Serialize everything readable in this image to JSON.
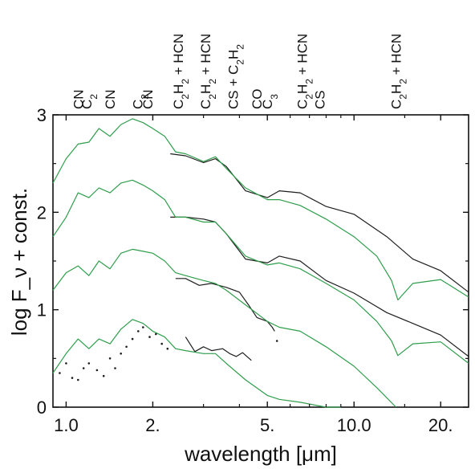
{
  "chart_data": {
    "type": "line",
    "xlabel": "wavelength [μm]",
    "ylabel": "log F_ν + const.",
    "xscale": "log",
    "xlim": [
      0.9,
      25
    ],
    "ylim": [
      0,
      3
    ],
    "x_ticks": [
      {
        "value": 1.0,
        "label": "1.0"
      },
      {
        "value": 2.0,
        "label": "2."
      },
      {
        "value": 5.0,
        "label": "5."
      },
      {
        "value": 10.0,
        "label": "10.0"
      },
      {
        "value": 20.0,
        "label": "20."
      }
    ],
    "y_ticks": [
      {
        "value": 0,
        "label": "0"
      },
      {
        "value": 1,
        "label": "1"
      },
      {
        "value": 2,
        "label": "2"
      },
      {
        "value": 3,
        "label": "3"
      }
    ],
    "molecule_labels": [
      {
        "x": 1.1,
        "text": "CN"
      },
      {
        "x": 1.18,
        "text": "C2"
      },
      {
        "x": 1.42,
        "text": "CN"
      },
      {
        "x": 1.77,
        "text": "C2"
      },
      {
        "x": 1.92,
        "text": "CN"
      },
      {
        "x": 2.45,
        "text": "C2H2 + HCN"
      },
      {
        "x": 3.05,
        "text": "C2H2 + HCN"
      },
      {
        "x": 3.8,
        "text": "CS + C2H2"
      },
      {
        "x": 4.6,
        "text": "CO"
      },
      {
        "x": 5.0,
        "text": "C3"
      },
      {
        "x": 6.6,
        "text": "C2H2 + HCN"
      },
      {
        "x": 7.6,
        "text": "CS"
      },
      {
        "x": 14.0,
        "text": "C2H2 + HCN"
      }
    ],
    "series": [
      {
        "color": "#1e1e1e",
        "x": [
          2.3,
          2.6,
          3.0,
          3.3,
          3.6,
          4.2,
          5.0,
          5.5,
          6.5,
          8.0,
          10.0,
          13.0,
          16.0,
          20.0,
          25.0
        ],
        "y": [
          2.6,
          2.58,
          2.51,
          2.55,
          2.47,
          2.22,
          2.15,
          2.22,
          2.2,
          2.06,
          1.98,
          1.75,
          1.52,
          1.4,
          1.18
        ]
      },
      {
        "color": "#2e9e4b",
        "x": [
          0.9,
          1.0,
          1.1,
          1.2,
          1.3,
          1.42,
          1.55,
          1.7,
          1.85,
          2.0,
          2.2,
          2.4,
          2.6,
          3.0,
          3.3,
          3.6,
          4.2,
          5.0,
          5.5,
          6.5,
          8.0,
          10.0,
          12.0,
          13.5,
          14.2,
          16.0,
          20.0,
          25.0
        ],
        "y": [
          2.3,
          2.55,
          2.7,
          2.72,
          2.86,
          2.78,
          2.9,
          2.96,
          2.92,
          2.86,
          2.78,
          2.62,
          2.6,
          2.52,
          2.57,
          2.45,
          2.25,
          2.13,
          2.13,
          2.07,
          1.93,
          1.75,
          1.55,
          1.3,
          1.1,
          1.27,
          1.31,
          1.13
        ]
      },
      {
        "color": "#1e1e1e",
        "x": [
          2.3,
          2.6,
          3.0,
          3.3,
          3.6,
          4.2,
          5.0,
          5.5,
          6.5,
          8.0,
          10.0,
          13.0,
          16.0,
          20.0,
          25.0
        ],
        "y": [
          1.95,
          1.95,
          1.93,
          1.9,
          1.78,
          1.52,
          1.48,
          1.55,
          1.5,
          1.3,
          1.17,
          0.97,
          0.86,
          0.74,
          0.52
        ]
      },
      {
        "color": "#2e9e4b",
        "x": [
          0.9,
          1.0,
          1.1,
          1.2,
          1.3,
          1.42,
          1.55,
          1.7,
          1.85,
          2.0,
          2.2,
          2.4,
          2.6,
          3.0,
          3.3,
          3.6,
          4.2,
          5.0,
          5.5,
          6.5,
          8.0,
          10.0,
          12.0,
          13.5,
          14.2,
          16.0,
          20.0,
          25.0
        ],
        "y": [
          1.75,
          1.95,
          2.2,
          2.15,
          2.25,
          2.2,
          2.3,
          2.33,
          2.28,
          2.22,
          2.13,
          1.95,
          1.95,
          1.9,
          1.9,
          1.78,
          1.55,
          1.46,
          1.48,
          1.42,
          1.27,
          1.1,
          0.88,
          0.68,
          0.53,
          0.65,
          0.67,
          0.45
        ]
      },
      {
        "color": "#1e1e1e",
        "x": [
          2.4,
          2.6,
          2.9,
          3.2,
          3.6,
          4.0,
          4.3,
          4.6,
          5.0,
          5.2,
          5.3
        ],
        "y": [
          1.32,
          1.32,
          1.25,
          1.27,
          1.23,
          1.18,
          1.05,
          0.92,
          0.88,
          0.82,
          0.78
        ]
      },
      {
        "color": "#2e9e4b",
        "x": [
          0.9,
          1.0,
          1.1,
          1.2,
          1.3,
          1.42,
          1.55,
          1.7,
          1.85,
          2.0,
          2.2,
          2.4,
          2.6,
          3.0,
          3.3,
          3.6,
          4.2,
          5.0,
          5.5,
          6.5,
          8.0,
          10.0,
          12.0,
          14.0
        ],
        "y": [
          1.2,
          1.38,
          1.45,
          1.35,
          1.5,
          1.42,
          1.58,
          1.62,
          1.6,
          1.58,
          1.5,
          1.38,
          1.35,
          1.3,
          1.27,
          1.2,
          1.05,
          0.88,
          0.82,
          0.78,
          0.62,
          0.42,
          0.2,
          0.0
        ]
      },
      {
        "color": "#1e1e1e",
        "x": [
          2.6,
          2.8,
          3.0,
          3.2,
          3.5,
          3.7,
          3.9,
          4.1,
          4.4
        ],
        "y": [
          0.72,
          0.57,
          0.62,
          0.58,
          0.6,
          0.55,
          0.52,
          0.56,
          0.48
        ]
      },
      {
        "color": "#2e9e4b",
        "x": [
          0.9,
          1.0,
          1.1,
          1.2,
          1.3,
          1.42,
          1.55,
          1.7,
          1.85,
          2.0,
          2.2,
          2.4,
          2.6,
          3.0,
          3.3,
          3.6,
          4.2,
          5.0,
          5.5,
          6.5,
          8.0,
          9.0
        ],
        "y": [
          0.35,
          0.55,
          0.7,
          0.6,
          0.7,
          0.65,
          0.8,
          0.9,
          0.86,
          0.78,
          0.72,
          0.6,
          0.58,
          0.55,
          0.55,
          0.45,
          0.28,
          0.12,
          0.08,
          0.05,
          -0.05,
          -0.15
        ]
      },
      {
        "color": "#1e1e1e",
        "style": "dots",
        "x": [
          0.95,
          1.0,
          1.05,
          1.1,
          1.15,
          1.2,
          1.28,
          1.35,
          1.42,
          1.48,
          1.55,
          1.62,
          1.7,
          1.78,
          1.85,
          1.95,
          2.05,
          2.15,
          2.25,
          5.4
        ],
        "y": [
          0.35,
          0.45,
          0.3,
          0.28,
          0.4,
          0.45,
          0.38,
          0.32,
          0.5,
          0.4,
          0.55,
          0.62,
          0.7,
          0.78,
          0.82,
          0.72,
          0.75,
          0.65,
          0.6,
          0.68
        ]
      }
    ]
  }
}
